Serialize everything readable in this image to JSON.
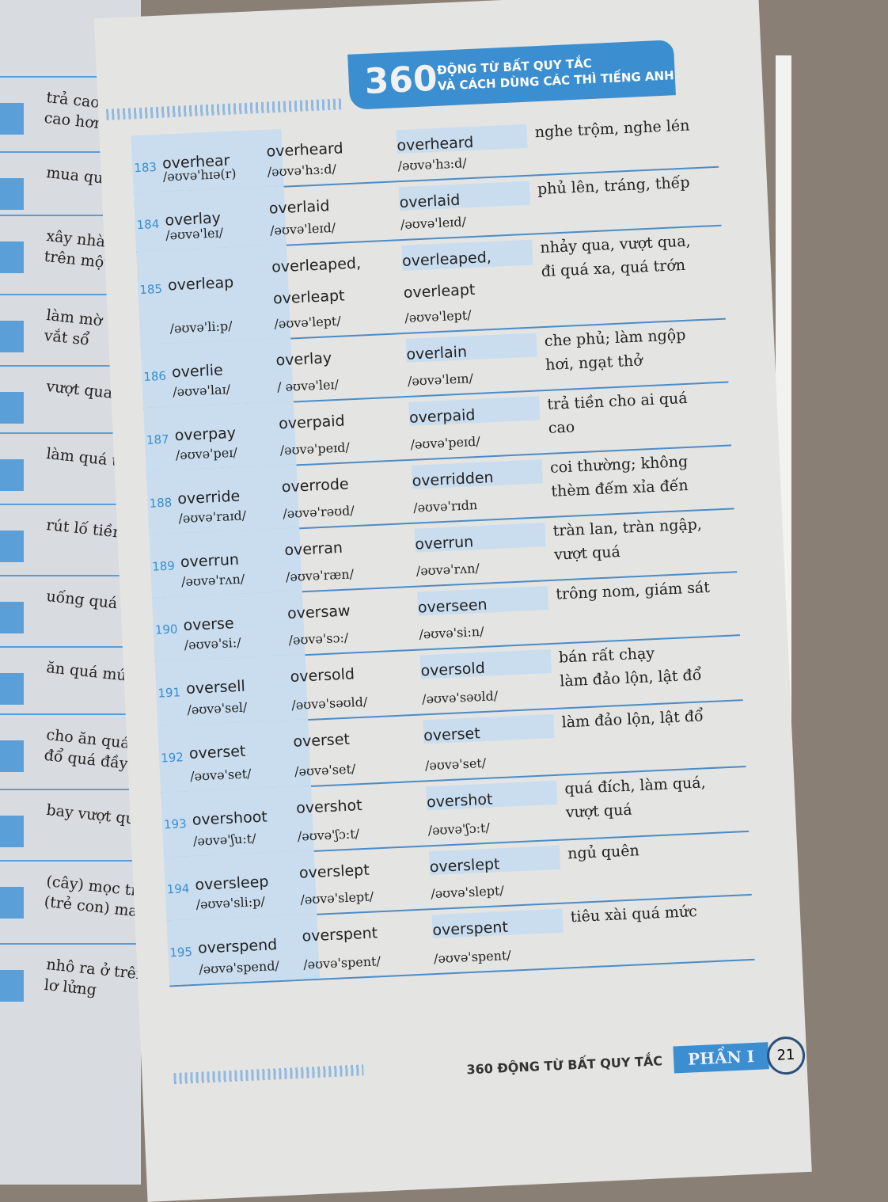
{
  "header": {
    "big": "360",
    "line1": "ĐỘNG TỪ BẤT QUY TẮC",
    "line2": "VÀ CÁCH DÙNG CÁC THÌ TIẾNG ANH"
  },
  "left_page": [
    "trả cao hơn, bỏ\ncao hơn",
    "mua quá nhiều",
    "xây nhà quá nhiều\ntrên một chỗ",
    "làm mờ tối; (m\nvắt sổ",
    "vượt qua, khắc p",
    "làm quá trớn",
    "rút lố tiền",
    "uống quá nhiều",
    "ăn quá mức",
    "cho ăn quá nhiều\nđổ quá đầy",
    "bay vượt qua",
    "(cây) mọc tràn lan\n(trẻ con) mau lớn",
    "nhô ra ở trên, n\nlơ lửng"
  ],
  "rows": [
    {
      "no": "183",
      "base": "overhear",
      "base_ipa": "/əʊvə'hɪə(r)",
      "past": "overheard",
      "past_ipa": "/əʊvə'hɜ:d/",
      "pp": "overheard",
      "pp_ipa": "/əʊvə'hɜ:d/",
      "meaning": "nghe trộm, nghe lén"
    },
    {
      "no": "184",
      "base": "overlay",
      "base_ipa": "/əʊvə'leɪ/",
      "past": "overlaid",
      "past_ipa": "/əʊvə'leɪd/",
      "pp": "overlaid",
      "pp_ipa": "/əʊvə'leɪd/",
      "meaning": "phủ lên, tráng, thếp"
    },
    {
      "no": "185",
      "base": "overleap",
      "base_ipa": "/əʊvə'li:p/",
      "past": "overleaped,\noverleapt",
      "past_ipa": "/əʊvə'lept/",
      "pp": "overleaped,\noverleapt",
      "pp_ipa": "/əʊvə'lept/",
      "meaning": "nhảy qua, vượt qua,\nđi quá xa, quá trớn"
    },
    {
      "no": "186",
      "base": "overlie",
      "base_ipa": "/əʊvə'laɪ/",
      "past": "overlay",
      "past_ipa": "/ əʊvə'leɪ/",
      "pp": "overlain",
      "pp_ipa": "/əʊvə'leɪn/",
      "meaning": "che phủ; làm ngộp\nhơi, ngạt thở"
    },
    {
      "no": "187",
      "base": "overpay",
      "base_ipa": "/əʊvə'peɪ/",
      "past": "overpaid",
      "past_ipa": "/əʊvə'peɪd/",
      "pp": "overpaid",
      "pp_ipa": "/əʊvə'peɪd/",
      "meaning": "trả tiền cho ai quá\ncao"
    },
    {
      "no": "188",
      "base": "override",
      "base_ipa": "/əʊvə'raɪd/",
      "past": "overrode",
      "past_ipa": "/əʊvə'rəʊd/",
      "pp": "overridden",
      "pp_ipa": "/əʊvə'rɪdn",
      "meaning": "coi thường; không\nthèm đếm xỉa đến"
    },
    {
      "no": "189",
      "base": "overrun",
      "base_ipa": "/əʊvə'rʌn/",
      "past": "overran",
      "past_ipa": "/əʊvə'ræn/",
      "pp": "overrun",
      "pp_ipa": "/əʊvə'rʌn/",
      "meaning": "tràn lan, tràn ngập,\nvượt quá"
    },
    {
      "no": "190",
      "base": "overse",
      "base_ipa": "/əʊvə'si:/",
      "past": "oversaw",
      "past_ipa": "/əʊvə'sɔ:/",
      "pp": "overseen",
      "pp_ipa": "/əʊvə'si:n/",
      "meaning": "trông nom, giám sát"
    },
    {
      "no": "191",
      "base": "oversell",
      "base_ipa": "/əʊvə'sel/",
      "past": "oversold",
      "past_ipa": "/əʊvə'səʊld/",
      "pp": "oversold",
      "pp_ipa": "/əʊvə'səʊld/",
      "meaning": "bán rất chạy\nlàm đảo lộn, lật đổ"
    },
    {
      "no": "192",
      "base": "overset",
      "base_ipa": "/əʊvə'set/",
      "past": "overset",
      "past_ipa": "/əʊvə'set/",
      "pp": "overset",
      "pp_ipa": "/əʊvə'set/",
      "meaning": "làm đảo lộn, lật đổ"
    },
    {
      "no": "193",
      "base": "overshoot",
      "base_ipa": "/əʊvə'ʃu:t/",
      "past": "overshot",
      "past_ipa": "/əʊvə'ʃɔ:t/",
      "pp": "overshot",
      "pp_ipa": "/əʊvə'ʃɔ:t/",
      "meaning": "quá đích, làm quá,\nvượt quá"
    },
    {
      "no": "194",
      "base": "oversleep",
      "base_ipa": "/əʊvə'sli:p/",
      "past": "overslept",
      "past_ipa": "/əʊvə'slept/",
      "pp": "overslept",
      "pp_ipa": "/əʊvə'slept/",
      "meaning": "ngủ quên"
    },
    {
      "no": "195",
      "base": "overspend",
      "base_ipa": "/əʊvə'spend/",
      "past": "overspent",
      "past_ipa": "/əʊvə'spent/",
      "pp": "overspent",
      "pp_ipa": "/əʊvə'spent/",
      "meaning": "tiêu xài quá mức"
    }
  ],
  "footer": {
    "title": "360 ĐỘNG TỪ BẤT QUY TẮC",
    "section": "PHẦN I",
    "page": "21"
  },
  "colors": {
    "accent": "#3b8ed0",
    "row_shade": "#c9ddef"
  }
}
